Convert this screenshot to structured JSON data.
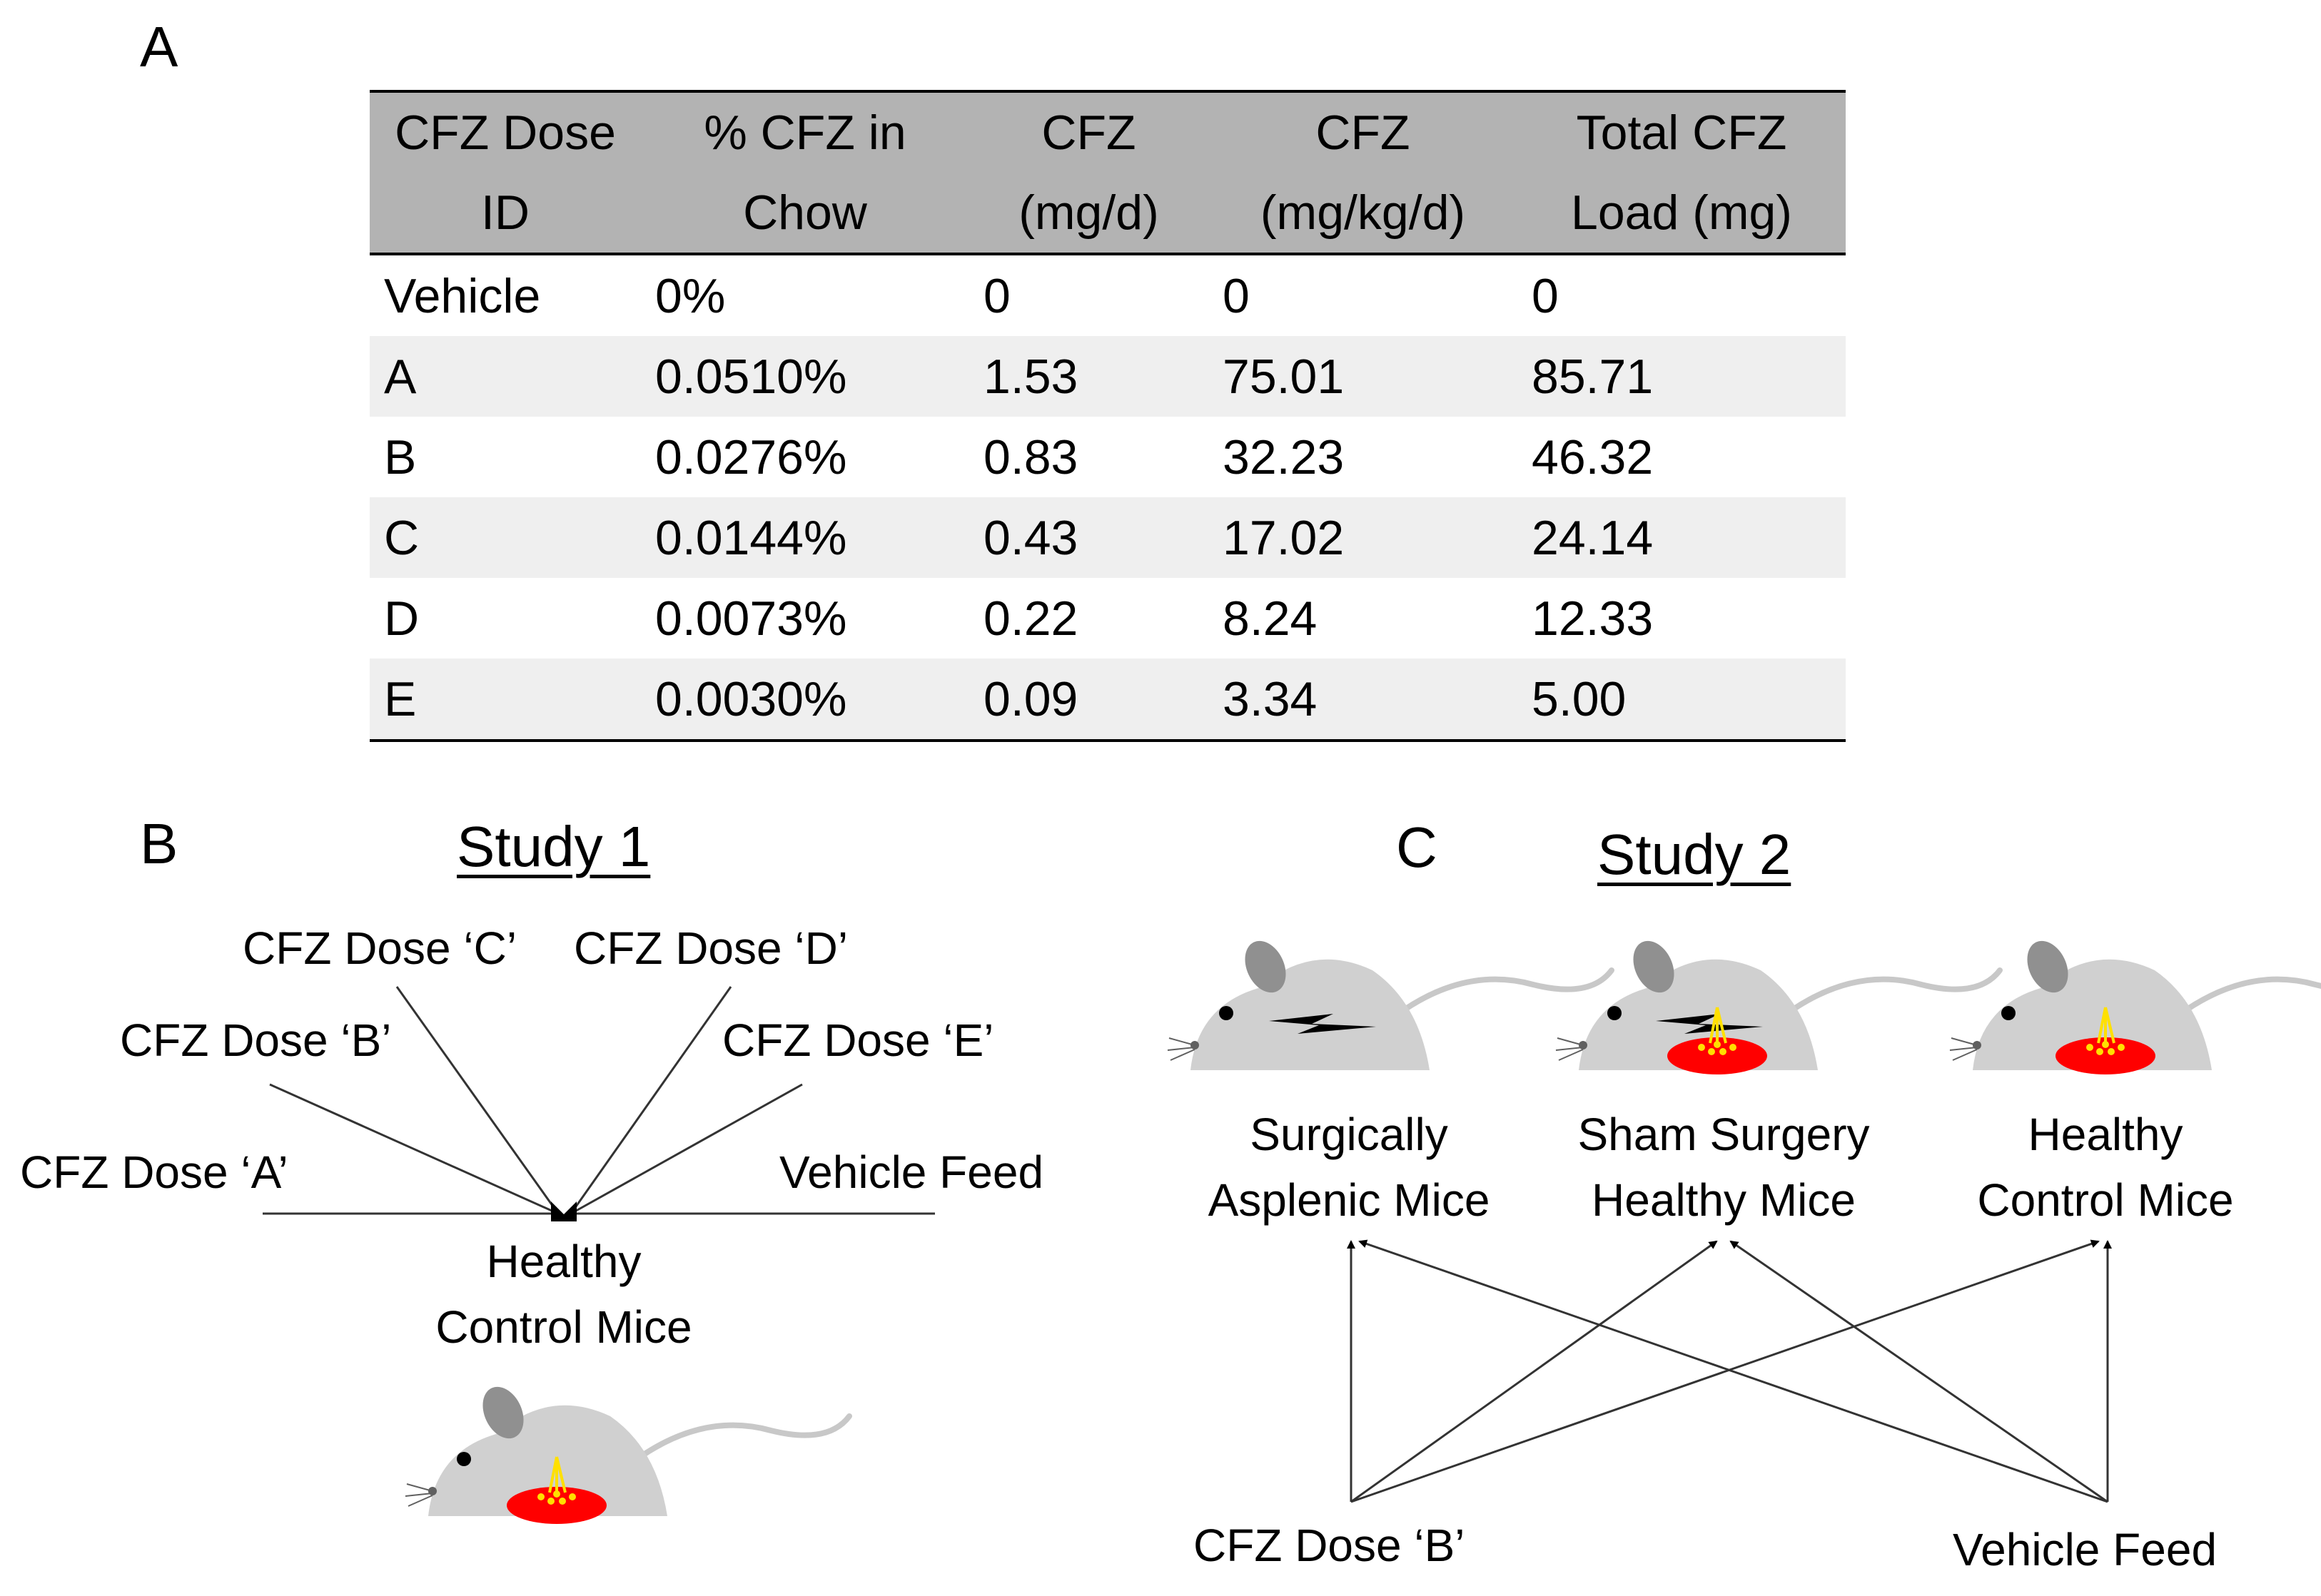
{
  "panel_a": {
    "letter": "A",
    "columns": [
      {
        "line1": "CFZ Dose",
        "line2": "ID"
      },
      {
        "line1": "% CFZ in",
        "line2": "Chow"
      },
      {
        "line1": "CFZ",
        "line2": "(mg/d)"
      },
      {
        "line1": "CFZ",
        "line2": "(mg/kg/d)"
      },
      {
        "line1": "Total CFZ",
        "line2": "Load (mg)"
      }
    ],
    "rows": [
      [
        "Vehicle",
        "0%",
        "0",
        "0",
        "0"
      ],
      [
        "A",
        "0.0510%",
        "1.53",
        "75.01",
        "85.71"
      ],
      [
        "B",
        "0.0276%",
        "0.83",
        "32.23",
        "46.32"
      ],
      [
        "C",
        "0.0144%",
        "0.43",
        "17.02",
        "24.14"
      ],
      [
        "D",
        "0.0073%",
        "0.22",
        "8.24",
        "12.33"
      ],
      [
        "E",
        "0.0030%",
        "0.09",
        "3.34",
        "5.00"
      ]
    ]
  },
  "panel_b": {
    "letter": "B",
    "title": "Study 1",
    "doses": {
      "a": "CFZ Dose ‘A’",
      "b": "CFZ Dose ‘B’",
      "c": "CFZ Dose ‘C’",
      "d": "CFZ Dose ‘D’",
      "e": "CFZ Dose ‘E’",
      "vehicle": "Vehicle Feed"
    },
    "target": "Healthy\nControl Mice"
  },
  "panel_c": {
    "letter": "C",
    "title": "Study 2",
    "groups": [
      "Surgically\nAsplenic Mice",
      "Sham Surgery\nHealthy Mice",
      "Healthy\nControl Mice"
    ],
    "sources": {
      "dose_b": "CFZ Dose ‘B’",
      "vehicle": "Vehicle Feed"
    }
  },
  "colors": {
    "header_bg": "#b3b3b3",
    "stripe_bg": "#efefef",
    "mouse_body": "#d0d0d0",
    "food_red": "#ff0000",
    "food_yellow": "#ffe000"
  },
  "icons": [
    "mouse-icon",
    "food-pellet-icon",
    "surgery-incision-icon",
    "arrow-icon"
  ]
}
